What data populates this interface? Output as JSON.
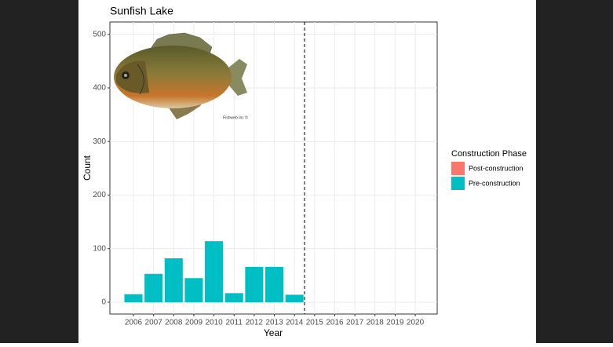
{
  "chart_data": {
    "type": "bar",
    "title": "Sunfish Lake",
    "x_label": "Year",
    "y_label": "Count",
    "x": [
      2006,
      2007,
      2008,
      2009,
      2010,
      2011,
      2012,
      2013,
      2014,
      2015,
      2016,
      2017,
      2018,
      2019,
      2020
    ],
    "series": [
      {
        "name": "Post-construction",
        "color": "#F8766D",
        "values": [
          null,
          null,
          null,
          null,
          null,
          null,
          null,
          null,
          null,
          null,
          null,
          null,
          null,
          null,
          null
        ]
      },
      {
        "name": "Pre-construction",
        "color": "#00BFC4",
        "values": [
          15,
          53,
          82,
          45,
          114,
          17,
          66,
          66,
          14,
          null,
          null,
          null,
          null,
          null,
          null
        ]
      }
    ],
    "xlim": [
      2004.83,
      2021.09
    ],
    "xticks": [
      2006,
      2007,
      2008,
      2009,
      2010,
      2011,
      2012,
      2013,
      2014,
      2015,
      2016,
      2017,
      2018,
      2019,
      2020
    ],
    "ylim": [
      -22,
      523
    ],
    "yticks": [
      0,
      100,
      200,
      300,
      400,
      500
    ],
    "vline": 2014.5,
    "grid": true,
    "legend_title": "Construction Phase",
    "legend_position": "right",
    "image_credit": "Fishweb Inc ©"
  }
}
